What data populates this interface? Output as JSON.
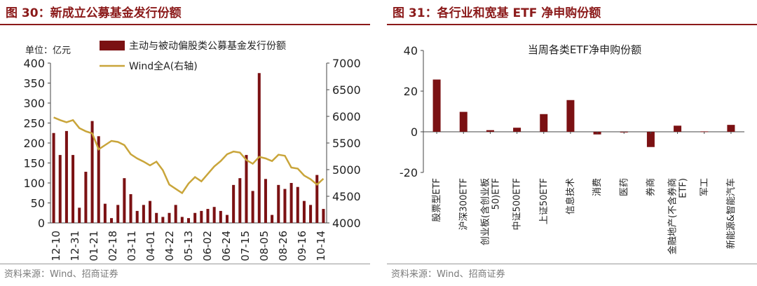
{
  "left": {
    "title": "图 30：新成立公募基金发行份额",
    "source": "资料来源：Wind、招商证券"
  },
  "right": {
    "title": "图 31：各行业和宽基 ETF 净申购份额",
    "source": "资料来源：Wind、招商证券"
  },
  "colors": {
    "bar": "#7b1113",
    "line": "#c9a53a",
    "title": "#8b1a1a"
  },
  "chart_data": [
    {
      "type": "bar",
      "unit_label": "单位：亿元",
      "legend_position": "top",
      "series": [
        {
          "name": "主动与被动偏股类公募基金发行份额",
          "type": "bar",
          "axis": "left",
          "values": [
            225,
            170,
            230,
            170,
            38,
            128,
            255,
            217,
            48,
            12,
            45,
            112,
            72,
            30,
            45,
            55,
            25,
            15,
            25,
            45,
            15,
            12,
            25,
            30,
            35,
            40,
            30,
            20,
            95,
            112,
            170,
            80,
            375,
            110,
            20,
            95,
            85,
            100,
            90,
            55,
            45,
            120,
            35
          ]
        },
        {
          "name": "Wind全A(右轴)",
          "type": "line",
          "axis": "right",
          "values": [
            5980,
            5930,
            5890,
            5930,
            5780,
            5720,
            5680,
            5380,
            5460,
            5540,
            5520,
            5460,
            5290,
            5210,
            5150,
            5080,
            5150,
            4990,
            4720,
            4640,
            4560,
            4740,
            4860,
            4780,
            4920,
            5060,
            5160,
            5290,
            5340,
            5320,
            5180,
            5110,
            5240,
            5210,
            5160,
            5280,
            5260,
            5040,
            5020,
            4890,
            4820,
            4720,
            4830
          ]
        }
      ],
      "x_tick_labels": [
        "12-10",
        "12-31",
        "01-21",
        "02-18",
        "03-11",
        "04-01",
        "04-22",
        "05-13",
        "06-02",
        "06-24",
        "07-15",
        "08-05",
        "08-26",
        "09-16",
        "10-14"
      ],
      "y_left": {
        "min": 0,
        "max": 400,
        "ticks": [
          0,
          50,
          100,
          150,
          200,
          250,
          300,
          350,
          400
        ]
      },
      "y_right": {
        "min": 4000,
        "max": 7000,
        "ticks": [
          4000,
          4500,
          5000,
          5500,
          6000,
          6500,
          7000
        ]
      }
    },
    {
      "type": "bar",
      "title": "当周各类ETF净申购份额",
      "categories": [
        "股票型ETF",
        "沪深300ETF",
        "创业板(含创业板50)ETF",
        "中证500ETF",
        "上证50ETF",
        "信息技术",
        "消费",
        "医药",
        "券商",
        "金融地产(不含券商ETF)",
        "军工",
        "新能源&智能汽车"
      ],
      "category_lines": [
        [
          "股票型ETF"
        ],
        [
          "沪深300ETF"
        ],
        [
          "创业板(含创业板",
          "50)ETF"
        ],
        [
          "中证500ETF"
        ],
        [
          "上证50ETF"
        ],
        [
          "信息技术"
        ],
        [
          "消费"
        ],
        [
          "医药"
        ],
        [
          "券商"
        ],
        [
          "金融地产(不含券商",
          "ETF)"
        ],
        [
          "军工"
        ],
        [
          "新能源&智能汽车"
        ]
      ],
      "values": [
        25.7,
        9.8,
        0.8,
        2.0,
        8.7,
        15.6,
        -1.3,
        -0.1,
        -7.5,
        3.0,
        0.2,
        3.4
      ],
      "ylim": [
        -20,
        40
      ],
      "y_ticks": [
        -20,
        0,
        20,
        40
      ],
      "grid": false
    }
  ]
}
